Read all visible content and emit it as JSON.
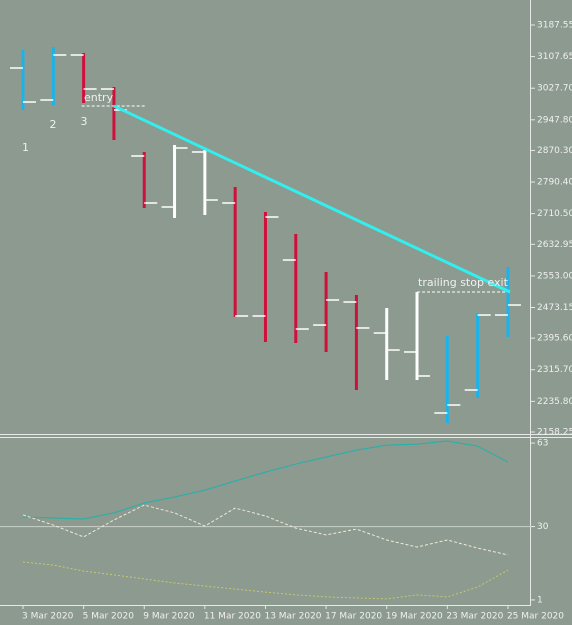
{
  "chart_data": [
    {
      "type": "ohlc",
      "categories": [
        "3 Mar 2020",
        null,
        "5 Mar 2020",
        null,
        "9 Mar 2020",
        null,
        "11 Mar 2020",
        null,
        "13 Mar 2020",
        null,
        "17 Mar 2020",
        null,
        "19 Mar 2020",
        null,
        "23 Mar 2020",
        null,
        "25 Mar 2020"
      ],
      "open": [
        3078.8,
        2997.9,
        3111.7,
        3025.7,
        2856.3,
        2727.3,
        2866.4,
        2737.4,
        2451.6,
        2593.2,
        2428.8,
        2487.0,
        2408.6,
        2360.6,
        2206.3,
        2264.5,
        2454.1
      ],
      "high": [
        3124.3,
        3131.9,
        3116.7,
        3030.7,
        2866.4,
        2884.1,
        2871.4,
        2777.9,
        2714.6,
        2659.0,
        2562.9,
        2504.7,
        2471.8,
        2512.3,
        2401.0,
        2459.2,
        2575.5
      ],
      "low": [
        2972.6,
        2985.3,
        2990.3,
        2896.7,
        2724.7,
        2699.4,
        2707.0,
        2449.1,
        2385.9,
        2383.3,
        2360.6,
        2264.5,
        2289.8,
        2289.8,
        2181.0,
        2244.2,
        2398.5
      ],
      "close": [
        2992.8,
        3111.7,
        3025.7,
        2972.6,
        2737.4,
        2876.5,
        2745.0,
        2451.6,
        2702.0,
        2418.7,
        2492.1,
        2421.3,
        2365.6,
        2299.9,
        2226.5,
        2454.1,
        2479.4
      ],
      "colors": [
        "#1ab4ec",
        "#1ab4ec",
        "#d0103a",
        "#d0103a",
        "#d0103a",
        "#ffffff",
        "#ffffff",
        "#d0103a",
        "#d0103a",
        "#d0103a",
        "#d0103a",
        "#d0103a",
        "#ffffff",
        "#ffffff",
        "#1ab4ec",
        "#1ab4ec",
        "#1ab4ec"
      ],
      "ylim": [
        2153.2,
        3250.8
      ],
      "yticks": [
        {
          "value": 3187.55,
          "label": "3187.55"
        },
        {
          "value": 3107.65,
          "label": "3107.65"
        },
        {
          "value": 3027.7,
          "label": "3027.70"
        },
        {
          "value": 2947.8,
          "label": "2947.80"
        },
        {
          "value": 2870.3,
          "label": "2870.30"
        },
        {
          "value": 2790.4,
          "label": "2790.40"
        },
        {
          "value": 2710.5,
          "label": "2710.50"
        },
        {
          "value": 2632.95,
          "label": "2632.95"
        },
        {
          "value": 2553.0,
          "label": "2553.00"
        },
        {
          "value": 2473.15,
          "label": "2473.15"
        },
        {
          "value": 2395.6,
          "label": "2395.60"
        },
        {
          "value": 2315.7,
          "label": "2315.70"
        },
        {
          "value": 2235.8,
          "label": "2235.80"
        },
        {
          "value": 2158.25,
          "label": "2158.25"
        }
      ],
      "trendline": [
        2982.7,
        2512.3
      ],
      "trendline_color": "#33eeee",
      "annotations": [
        "1",
        "2",
        "3",
        "entry",
        "trailing stop exit"
      ]
    },
    {
      "type": "line",
      "series": [
        {
          "color": "#20b2aa",
          "values": [
            33.8,
            33.4,
            33.0,
            35.4,
            39.3,
            41.7,
            44.4,
            48.0,
            51.5,
            54.7,
            57.5,
            60.2,
            62.2,
            62.6,
            63.8,
            61.8,
            55.5
          ]
        },
        {
          "color": "#f2ead8",
          "values": [
            34.6,
            30.6,
            25.9,
            32.6,
            38.5,
            35.4,
            30.2,
            37.3,
            34.2,
            29.4,
            26.7,
            29.0,
            24.7,
            21.9,
            24.7,
            21.5,
            18.8
          ]
        },
        {
          "color": "#c8c870",
          "values": [
            16.0,
            14.8,
            12.4,
            10.9,
            9.3,
            7.7,
            6.5,
            5.3,
            4.1,
            3.0,
            2.2,
            1.8,
            1.4,
            3.0,
            2.2,
            6.1,
            12.8
          ]
        }
      ],
      "ylim": [
        -1,
        65.4
      ],
      "yticks": [
        63,
        30,
        1
      ]
    }
  ]
}
